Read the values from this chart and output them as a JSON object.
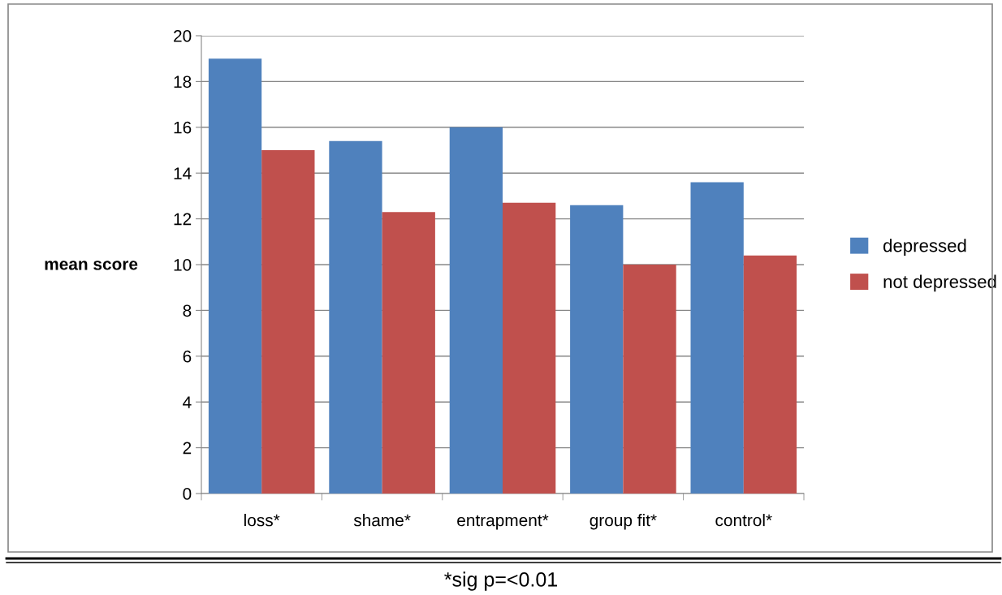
{
  "chart_data": {
    "type": "bar",
    "categories": [
      "loss*",
      "shame*",
      "entrapment*",
      "group fit*",
      "control*"
    ],
    "series": [
      {
        "name": "depressed",
        "color": "#4f81bd",
        "values": [
          19.0,
          15.4,
          16.0,
          12.6,
          13.6
        ]
      },
      {
        "name": "not depressed",
        "color": "#c0504d",
        "values": [
          15.0,
          12.3,
          12.7,
          10.0,
          10.4
        ]
      }
    ],
    "ylabel": "mean score",
    "ylim": [
      0,
      20
    ],
    "yticks": [
      0,
      2,
      4,
      6,
      8,
      10,
      12,
      14,
      16,
      18,
      20
    ],
    "grid": "y",
    "legend": "right",
    "annotations": [
      "*sig p=<0.01"
    ]
  }
}
